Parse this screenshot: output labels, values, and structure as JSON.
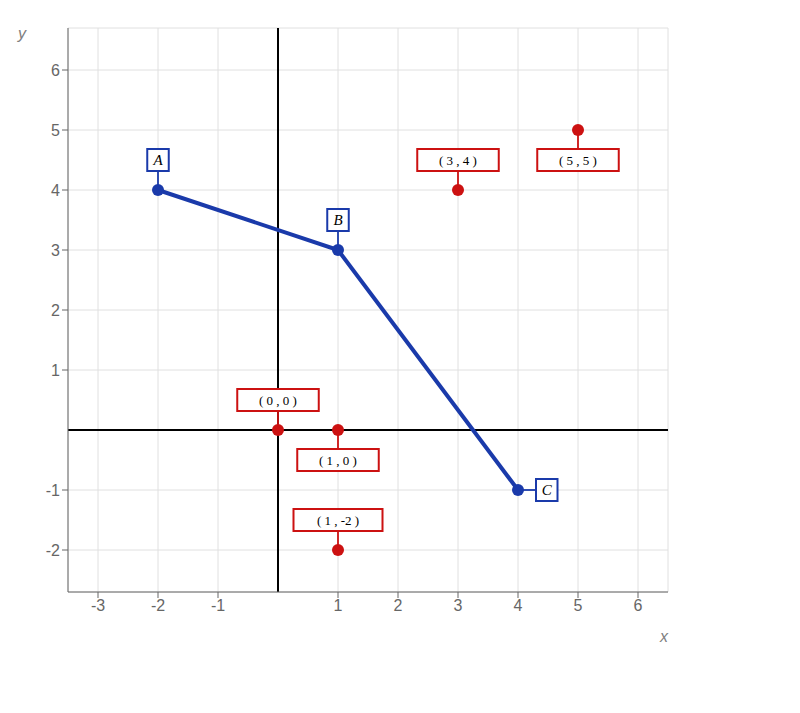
{
  "chart_data": {
    "type": "scatter",
    "x_label": "x",
    "y_label": "y",
    "xlim": [
      -3.5,
      6.5
    ],
    "ylim": [
      -2.7,
      6.7
    ],
    "xticks": [
      -3,
      -2,
      -1,
      1,
      2,
      3,
      4,
      5,
      6
    ],
    "yticks": [
      -2,
      -1,
      1,
      2,
      3,
      4,
      5,
      6
    ],
    "grid": true,
    "series": [
      {
        "type": "line",
        "marker": "circle",
        "color": "#1a3aaa",
        "x": [
          -2,
          1,
          4
        ],
        "values": [
          4,
          3,
          -1
        ],
        "annotations": [
          "A",
          "B",
          "C"
        ]
      },
      {
        "type": "scatter",
        "marker": "circle",
        "color": "#cc1111",
        "x": [
          0,
          1,
          3,
          5,
          1
        ],
        "values": [
          0,
          0,
          4,
          5,
          -2
        ],
        "annotations": [
          "( 0 , 0 )",
          "( 1 , 0 )",
          "( 3 , 4 )",
          "( 5 , 5 )",
          "( 1 , -2 )"
        ]
      }
    ]
  }
}
